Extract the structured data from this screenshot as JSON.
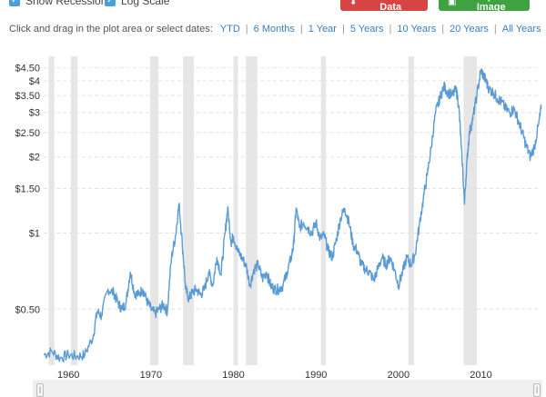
{
  "controls": {
    "show_recessions_label": "Show Recessions",
    "log_scale_label": "Log Scale",
    "download_label": "Download Data",
    "export_label": "Export Image",
    "check_icon": "check-icon",
    "download_icon": "download-icon",
    "export_icon": "image-icon"
  },
  "ranges": {
    "prompt": "Click and drag in the plot area or select dates:",
    "options": [
      "YTD",
      "6 Months",
      "1 Year",
      "5 Years",
      "10 Years",
      "20 Years",
      "All Years"
    ]
  },
  "colors": {
    "line": "#5b9bd5",
    "recession": "#e6e6e6",
    "download_button": "#d64541",
    "export_button": "#3fa142",
    "link": "#3a7fc1"
  },
  "chart_data": {
    "type": "line",
    "y_scale": "log",
    "ylim": [
      0.3,
      5.0
    ],
    "xlim": [
      1957,
      2017
    ],
    "y_ticks": [
      {
        "value": 4.5,
        "label": "$4.50"
      },
      {
        "value": 4.0,
        "label": "$4"
      },
      {
        "value": 3.5,
        "label": "$3.50"
      },
      {
        "value": 3.0,
        "label": "$3"
      },
      {
        "value": 2.5,
        "label": "$2.50"
      },
      {
        "value": 2.0,
        "label": "$2"
      },
      {
        "value": 1.5,
        "label": "$1.50"
      },
      {
        "value": 1.0,
        "label": "$1"
      },
      {
        "value": 0.5,
        "label": "$0.50"
      }
    ],
    "x_ticks": [
      1960,
      1970,
      1980,
      1990,
      2000,
      2010
    ],
    "grid": "horizontal-dashed",
    "recessions": [
      [
        1957.6,
        1958.3
      ],
      [
        1960.3,
        1961.1
      ],
      [
        1969.9,
        1970.9
      ],
      [
        1973.9,
        1975.2
      ],
      [
        1980.0,
        1980.5
      ],
      [
        1981.5,
        1982.9
      ],
      [
        1990.6,
        1991.2
      ],
      [
        2001.2,
        2001.9
      ],
      [
        2007.9,
        2009.5
      ]
    ],
    "series": [
      {
        "x": [
          1957.0,
          1958.0,
          1959.0,
          1960.0,
          1961.0,
          1962.0,
          1963.0,
          1963.5,
          1964.0,
          1964.8,
          1965.5,
          1966.0,
          1966.5,
          1967.0,
          1967.5,
          1968.0,
          1968.5,
          1969.0,
          1969.5,
          1970.0,
          1970.5,
          1971.0,
          1971.5,
          1972.0,
          1972.5,
          1973.0,
          1973.4,
          1973.8,
          1974.2,
          1974.6,
          1975.0,
          1975.5,
          1976.0,
          1976.5,
          1977.0,
          1977.5,
          1978.0,
          1978.5,
          1979.0,
          1979.3,
          1979.7,
          1980.0,
          1980.5,
          1981.0,
          1981.5,
          1982.0,
          1982.5,
          1983.0,
          1983.5,
          1984.0,
          1984.5,
          1985.0,
          1985.5,
          1986.0,
          1986.5,
          1987.0,
          1987.3,
          1987.6,
          1988.0,
          1988.5,
          1989.0,
          1989.5,
          1990.0,
          1990.5,
          1991.0,
          1991.5,
          1992.0,
          1992.5,
          1993.0,
          1993.5,
          1994.0,
          1994.5,
          1995.0,
          1995.5,
          1996.0,
          1996.5,
          1997.0,
          1997.5,
          1998.0,
          1998.5,
          1999.0,
          1999.5,
          2000.0,
          2000.5,
          2001.0,
          2001.5,
          2002.0,
          2002.5,
          2003.0,
          2003.5,
          2004.0,
          2004.5,
          2005.0,
          2005.5,
          2006.0,
          2006.5,
          2007.0,
          2007.3,
          2007.6,
          2008.0,
          2008.3,
          2008.6,
          2009.0,
          2009.5,
          2010.0,
          2010.3,
          2010.6,
          2011.0,
          2011.5,
          2012.0,
          2012.5,
          2013.0,
          2013.5,
          2014.0,
          2014.5,
          2015.0,
          2015.5,
          2016.0,
          2016.5,
          2017.0,
          2017.3
        ],
        "y": [
          0.33,
          0.34,
          0.32,
          0.33,
          0.325,
          0.33,
          0.39,
          0.49,
          0.47,
          0.6,
          0.58,
          0.53,
          0.5,
          0.53,
          0.7,
          0.58,
          0.57,
          0.6,
          0.54,
          0.5,
          0.48,
          0.5,
          0.52,
          0.49,
          0.8,
          0.98,
          1.3,
          0.9,
          0.6,
          0.55,
          0.58,
          0.6,
          0.57,
          0.6,
          0.7,
          0.62,
          0.8,
          0.68,
          1.0,
          1.25,
          0.92,
          0.97,
          0.85,
          0.8,
          0.75,
          0.62,
          0.72,
          0.75,
          0.66,
          0.7,
          0.62,
          0.6,
          0.6,
          0.62,
          0.7,
          0.8,
          0.9,
          1.25,
          1.05,
          1.1,
          1.05,
          1.0,
          1.1,
          0.95,
          0.98,
          0.85,
          0.8,
          0.95,
          1.15,
          1.25,
          1.1,
          0.9,
          0.85,
          0.75,
          0.72,
          0.7,
          0.65,
          0.72,
          0.8,
          0.75,
          0.8,
          0.72,
          0.62,
          0.7,
          0.8,
          0.75,
          0.82,
          1.05,
          1.35,
          1.7,
          2.2,
          3.0,
          3.4,
          3.8,
          3.6,
          3.5,
          3.7,
          3.2,
          2.2,
          1.3,
          1.9,
          2.5,
          2.8,
          3.5,
          4.4,
          4.2,
          4.0,
          3.7,
          3.6,
          3.4,
          3.3,
          3.1,
          3.0,
          3.1,
          2.8,
          2.5,
          2.2,
          2.0,
          2.2,
          2.7,
          3.1
        ]
      }
    ]
  }
}
